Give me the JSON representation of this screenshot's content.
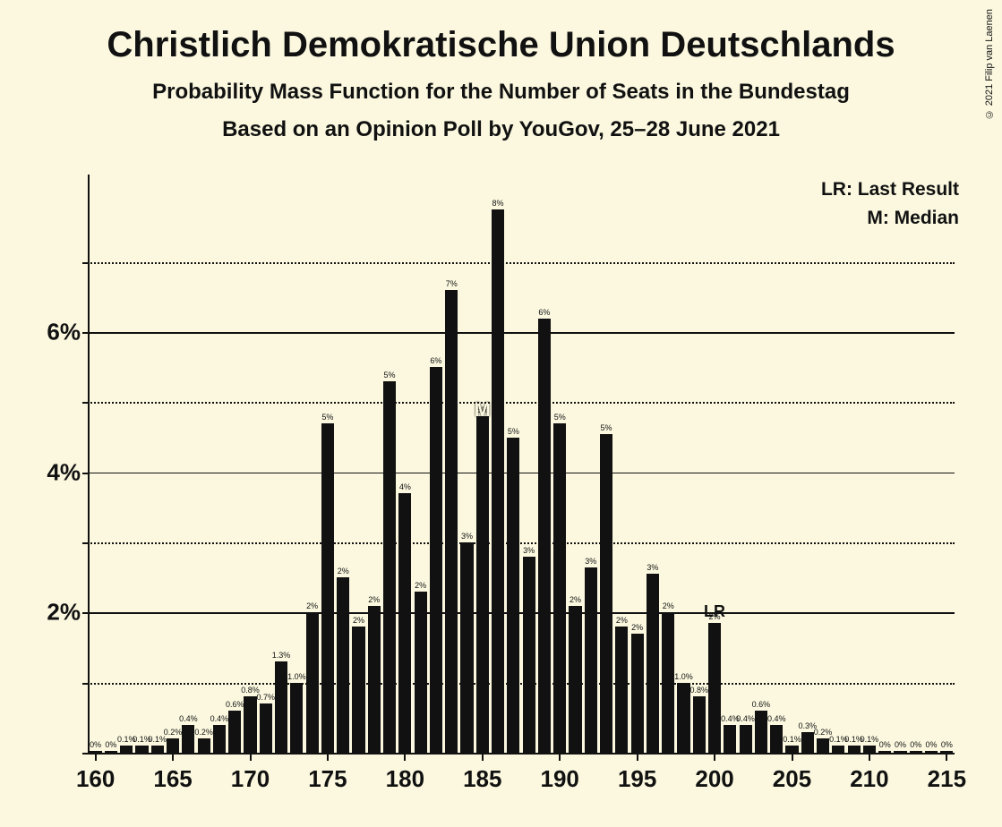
{
  "copyright": "© 2021 Filip van Laenen",
  "title": "Christlich Demokratische Union Deutschlands",
  "subtitle1": "Probability Mass Function for the Number of Seats in the Bundestag",
  "subtitle2": "Based on an Opinion Poll by YouGov, 25–28 June 2021",
  "legend": {
    "lr": "LR: Last Result",
    "m": "M: Median"
  },
  "chart": {
    "type": "bar",
    "bar_color": "#111111",
    "text_color": "#111111",
    "background_color": "#fbf8df",
    "grid_solid_color": "#111111",
    "grid_dotted_color": "#111111",
    "marker_text_color": "#fbf8df",
    "x_start": 160,
    "x_end": 215,
    "x_tick_step": 5,
    "x_tick_labels": [
      "160",
      "165",
      "170",
      "175",
      "180",
      "185",
      "190",
      "195",
      "200",
      "205",
      "210",
      "215"
    ],
    "y_min": 0,
    "y_max": 8.25,
    "y_ticks": [
      {
        "v": 0,
        "label": "",
        "style": "axis"
      },
      {
        "v": 1,
        "label": "",
        "style": "dotted"
      },
      {
        "v": 2,
        "label": "2%",
        "style": "solid"
      },
      {
        "v": 3,
        "label": "",
        "style": "dotted"
      },
      {
        "v": 4,
        "label": "4%",
        "style": "solid"
      },
      {
        "v": 5,
        "label": "",
        "style": "dotted"
      },
      {
        "v": 6,
        "label": "6%",
        "style": "solid"
      },
      {
        "v": 7,
        "label": "",
        "style": "dotted"
      }
    ],
    "y_label_fontsize": 26,
    "x_label_fontsize": 26,
    "bar_label_fontsize": 9,
    "bar_width_ratio": 0.82,
    "median_seat": 185,
    "last_result_seat": 200,
    "bars": [
      {
        "x": 160,
        "v": 0.02,
        "label": "0%"
      },
      {
        "x": 161,
        "v": 0.02,
        "label": "0%"
      },
      {
        "x": 162,
        "v": 0.1,
        "label": "0.1%"
      },
      {
        "x": 163,
        "v": 0.1,
        "label": "0.1%"
      },
      {
        "x": 164,
        "v": 0.1,
        "label": "0.1%"
      },
      {
        "x": 165,
        "v": 0.2,
        "label": "0.2%"
      },
      {
        "x": 166,
        "v": 0.4,
        "label": "0.4%"
      },
      {
        "x": 167,
        "v": 0.2,
        "label": "0.2%"
      },
      {
        "x": 168,
        "v": 0.4,
        "label": "0.4%"
      },
      {
        "x": 169,
        "v": 0.6,
        "label": "0.6%"
      },
      {
        "x": 170,
        "v": 0.8,
        "label": "0.8%"
      },
      {
        "x": 171,
        "v": 0.7,
        "label": "0.7%"
      },
      {
        "x": 172,
        "v": 1.3,
        "label": "1.3%"
      },
      {
        "x": 173,
        "v": 1.0,
        "label": "1.0%"
      },
      {
        "x": 174,
        "v": 2.0,
        "label": "2%"
      },
      {
        "x": 175,
        "v": 4.7,
        "label": "5%"
      },
      {
        "x": 176,
        "v": 2.5,
        "label": "2%"
      },
      {
        "x": 177,
        "v": 1.8,
        "label": "2%"
      },
      {
        "x": 178,
        "v": 2.1,
        "label": "2%"
      },
      {
        "x": 179,
        "v": 5.3,
        "label": "5%"
      },
      {
        "x": 180,
        "v": 3.7,
        "label": "4%"
      },
      {
        "x": 181,
        "v": 2.3,
        "label": "2%"
      },
      {
        "x": 182,
        "v": 5.5,
        "label": "6%"
      },
      {
        "x": 183,
        "v": 6.6,
        "label": "7%"
      },
      {
        "x": 184,
        "v": 3.0,
        "label": "3%"
      },
      {
        "x": 185,
        "v": 4.8,
        "label": "5%"
      },
      {
        "x": 186,
        "v": 7.75,
        "label": "8%"
      },
      {
        "x": 187,
        "v": 4.5,
        "label": "5%"
      },
      {
        "x": 188,
        "v": 2.8,
        "label": "3%"
      },
      {
        "x": 189,
        "v": 6.2,
        "label": "6%"
      },
      {
        "x": 190,
        "v": 4.7,
        "label": "5%"
      },
      {
        "x": 191,
        "v": 2.1,
        "label": "2%"
      },
      {
        "x": 192,
        "v": 2.65,
        "label": "3%"
      },
      {
        "x": 193,
        "v": 4.55,
        "label": "5%"
      },
      {
        "x": 194,
        "v": 1.8,
        "label": "2%"
      },
      {
        "x": 195,
        "v": 1.7,
        "label": "2%"
      },
      {
        "x": 196,
        "v": 2.55,
        "label": "3%"
      },
      {
        "x": 197,
        "v": 2.0,
        "label": "2%"
      },
      {
        "x": 198,
        "v": 1.0,
        "label": "1.0%"
      },
      {
        "x": 199,
        "v": 0.8,
        "label": "0.8%"
      },
      {
        "x": 200,
        "v": 1.85,
        "label": "2%"
      },
      {
        "x": 201,
        "v": 0.4,
        "label": "0.4%"
      },
      {
        "x": 202,
        "v": 0.4,
        "label": "0.4%"
      },
      {
        "x": 203,
        "v": 0.6,
        "label": "0.6%"
      },
      {
        "x": 204,
        "v": 0.4,
        "label": "0.4%"
      },
      {
        "x": 205,
        "v": 0.1,
        "label": "0.1%"
      },
      {
        "x": 206,
        "v": 0.3,
        "label": "0.3%"
      },
      {
        "x": 207,
        "v": 0.2,
        "label": "0.2%"
      },
      {
        "x": 208,
        "v": 0.1,
        "label": "0.1%"
      },
      {
        "x": 209,
        "v": 0.1,
        "label": "0.1%"
      },
      {
        "x": 210,
        "v": 0.1,
        "label": "0.1%"
      },
      {
        "x": 211,
        "v": 0.02,
        "label": "0%"
      },
      {
        "x": 212,
        "v": 0.02,
        "label": "0%"
      },
      {
        "x": 213,
        "v": 0.02,
        "label": "0%"
      },
      {
        "x": 214,
        "v": 0.02,
        "label": "0%"
      },
      {
        "x": 215,
        "v": 0.02,
        "label": "0%"
      }
    ]
  }
}
